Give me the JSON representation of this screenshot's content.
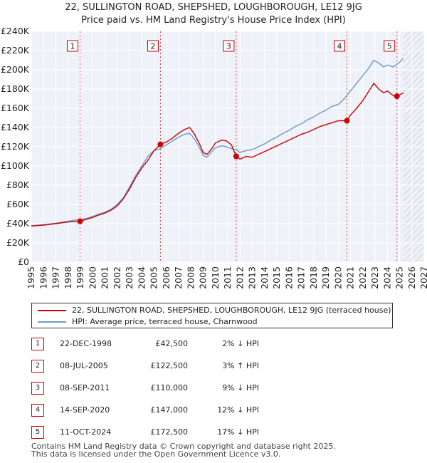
{
  "chart_data": {
    "type": "line",
    "title_line1": "22, SULLINGTON ROAD, SHEPSHED, LOUGHBOROUGH, LE12 9JG",
    "title_line2": "Price paid vs. HM Land Registry's House Price Index (HPI)",
    "xlim": [
      1995,
      2027
    ],
    "ylim": [
      0,
      240000
    ],
    "x_ticks": [
      "1995",
      "1996",
      "1997",
      "1998",
      "1999",
      "2000",
      "2001",
      "2002",
      "2003",
      "2004",
      "2005",
      "2006",
      "2007",
      "2008",
      "2009",
      "2010",
      "2011",
      "2012",
      "2013",
      "2014",
      "2015",
      "2016",
      "2017",
      "2018",
      "2019",
      "2020",
      "2021",
      "2022",
      "2023",
      "2024",
      "2025",
      "2026",
      "2027"
    ],
    "y_ticks": [
      {
        "value": 0,
        "label": "£0"
      },
      {
        "value": 20000,
        "label": "£20K"
      },
      {
        "value": 40000,
        "label": "£40K"
      },
      {
        "value": 60000,
        "label": "£60K"
      },
      {
        "value": 80000,
        "label": "£80K"
      },
      {
        "value": 100000,
        "label": "£100K"
      },
      {
        "value": 120000,
        "label": "£120K"
      },
      {
        "value": 140000,
        "label": "£140K"
      },
      {
        "value": 160000,
        "label": "£160K"
      },
      {
        "value": 180000,
        "label": "£180K"
      },
      {
        "value": 200000,
        "label": "£200K"
      },
      {
        "value": 220000,
        "label": "£220K"
      },
      {
        "value": 240000,
        "label": "£240K"
      }
    ],
    "grid": true,
    "hatch_from_year": 2025.3,
    "series": [
      {
        "name": "22, SULLINGTON ROAD, SHEPSHED, LOUGHBOROUGH, LE12 9JG (terraced house)",
        "color": "#cc0000",
        "points": [
          [
            1995.0,
            37500
          ],
          [
            1996.0,
            38500
          ],
          [
            1997.0,
            40000
          ],
          [
            1998.0,
            41800
          ],
          [
            1998.97,
            42500
          ],
          [
            1999.5,
            44500
          ],
          [
            2000.0,
            46500
          ],
          [
            2000.5,
            49000
          ],
          [
            2001.0,
            51000
          ],
          [
            2001.5,
            54000
          ],
          [
            2002.0,
            58500
          ],
          [
            2002.5,
            66000
          ],
          [
            2003.0,
            76000
          ],
          [
            2003.5,
            88000
          ],
          [
            2004.0,
            98000
          ],
          [
            2004.5,
            106000
          ],
          [
            2005.0,
            116000
          ],
          [
            2005.52,
            122500
          ],
          [
            2006.0,
            125000
          ],
          [
            2006.5,
            129000
          ],
          [
            2007.0,
            134000
          ],
          [
            2007.5,
            138000
          ],
          [
            2007.9,
            140000
          ],
          [
            2008.3,
            133000
          ],
          [
            2008.7,
            123000
          ],
          [
            2009.0,
            114000
          ],
          [
            2009.3,
            112000
          ],
          [
            2009.7,
            118000
          ],
          [
            2010.0,
            124000
          ],
          [
            2010.5,
            127000
          ],
          [
            2010.9,
            126000
          ],
          [
            2011.3,
            122000
          ],
          [
            2011.69,
            110000
          ],
          [
            2012.0,
            107000
          ],
          [
            2012.5,
            110000
          ],
          [
            2013.0,
            109000
          ],
          [
            2013.5,
            112000
          ],
          [
            2014.0,
            115000
          ],
          [
            2014.5,
            118000
          ],
          [
            2015.0,
            121000
          ],
          [
            2015.5,
            124000
          ],
          [
            2016.0,
            127000
          ],
          [
            2016.5,
            130000
          ],
          [
            2017.0,
            133000
          ],
          [
            2017.5,
            135000
          ],
          [
            2018.0,
            138000
          ],
          [
            2018.5,
            141000
          ],
          [
            2019.0,
            143000
          ],
          [
            2019.5,
            145000
          ],
          [
            2020.0,
            147000
          ],
          [
            2020.71,
            147000
          ],
          [
            2021.0,
            153000
          ],
          [
            2021.5,
            160000
          ],
          [
            2022.0,
            168000
          ],
          [
            2022.5,
            178000
          ],
          [
            2022.9,
            186000
          ],
          [
            2023.3,
            180000
          ],
          [
            2023.7,
            176000
          ],
          [
            2024.0,
            178000
          ],
          [
            2024.5,
            173000
          ],
          [
            2024.78,
            172500
          ],
          [
            2025.0,
            174000
          ],
          [
            2025.3,
            176000
          ]
        ]
      },
      {
        "name": "HPI: Average price, terraced house, Charnwood",
        "color": "#6b99c8",
        "points": [
          [
            1995.0,
            38000
          ],
          [
            1996.0,
            39000
          ],
          [
            1997.0,
            40500
          ],
          [
            1998.0,
            42500
          ],
          [
            1999.0,
            44500
          ],
          [
            1999.5,
            45500
          ],
          [
            2000.0,
            47500
          ],
          [
            2000.5,
            50000
          ],
          [
            2001.0,
            52000
          ],
          [
            2001.5,
            55000
          ],
          [
            2002.0,
            60000
          ],
          [
            2002.5,
            67000
          ],
          [
            2003.0,
            78000
          ],
          [
            2003.5,
            90000
          ],
          [
            2004.0,
            100000
          ],
          [
            2004.5,
            110000
          ],
          [
            2005.0,
            116000
          ],
          [
            2005.5,
            118000
          ],
          [
            2006.0,
            122000
          ],
          [
            2006.5,
            126000
          ],
          [
            2007.0,
            130000
          ],
          [
            2007.5,
            133000
          ],
          [
            2007.9,
            134000
          ],
          [
            2008.3,
            128000
          ],
          [
            2008.7,
            119000
          ],
          [
            2009.0,
            111000
          ],
          [
            2009.3,
            109000
          ],
          [
            2009.7,
            115000
          ],
          [
            2010.0,
            119000
          ],
          [
            2010.5,
            121000
          ],
          [
            2010.9,
            120000
          ],
          [
            2011.3,
            118000
          ],
          [
            2011.7,
            117000
          ],
          [
            2012.0,
            114000
          ],
          [
            2012.5,
            116000
          ],
          [
            2013.0,
            117000
          ],
          [
            2013.5,
            120000
          ],
          [
            2014.0,
            123000
          ],
          [
            2014.5,
            127000
          ],
          [
            2015.0,
            130000
          ],
          [
            2015.5,
            134000
          ],
          [
            2016.0,
            137000
          ],
          [
            2016.5,
            141000
          ],
          [
            2017.0,
            144000
          ],
          [
            2017.5,
            148000
          ],
          [
            2018.0,
            151000
          ],
          [
            2018.5,
            155000
          ],
          [
            2019.0,
            158000
          ],
          [
            2019.5,
            162000
          ],
          [
            2020.0,
            164000
          ],
          [
            2020.5,
            170000
          ],
          [
            2021.0,
            178000
          ],
          [
            2021.5,
            186000
          ],
          [
            2022.0,
            194000
          ],
          [
            2022.5,
            202000
          ],
          [
            2022.9,
            210000
          ],
          [
            2023.3,
            207000
          ],
          [
            2023.7,
            203000
          ],
          [
            2024.0,
            205000
          ],
          [
            2024.5,
            203000
          ],
          [
            2025.0,
            208000
          ],
          [
            2025.3,
            212000
          ]
        ]
      }
    ],
    "sales": [
      {
        "id": "1",
        "x": 1998.97,
        "y": 42500
      },
      {
        "id": "2",
        "x": 2005.52,
        "y": 122500
      },
      {
        "id": "3",
        "x": 2011.69,
        "y": 110000
      },
      {
        "id": "4",
        "x": 2020.71,
        "y": 147000
      },
      {
        "id": "5",
        "x": 2024.78,
        "y": 172500
      }
    ]
  },
  "legend": {
    "series1": "22, SULLINGTON ROAD, SHEPSHED, LOUGHBOROUGH, LE12 9JG (terraced house)",
    "series2": "HPI: Average price, terraced house, Charnwood"
  },
  "table": [
    {
      "num": "1",
      "date": "22-DEC-1998",
      "price": "£42,500",
      "hpi": "2% ↓ HPI"
    },
    {
      "num": "2",
      "date": "08-JUL-2005",
      "price": "£122,500",
      "hpi": "3% ↑ HPI"
    },
    {
      "num": "3",
      "date": "08-SEP-2011",
      "price": "£110,000",
      "hpi": "9% ↓ HPI"
    },
    {
      "num": "4",
      "date": "14-SEP-2020",
      "price": "£147,000",
      "hpi": "12% ↓ HPI"
    },
    {
      "num": "5",
      "date": "11-OCT-2024",
      "price": "£172,500",
      "hpi": "17% ↓ HPI"
    }
  ],
  "footer": {
    "line1": "Contains HM Land Registry data © Crown copyright and database right 2025.",
    "line2": "This data is licensed under the Open Government Licence v3.0."
  }
}
